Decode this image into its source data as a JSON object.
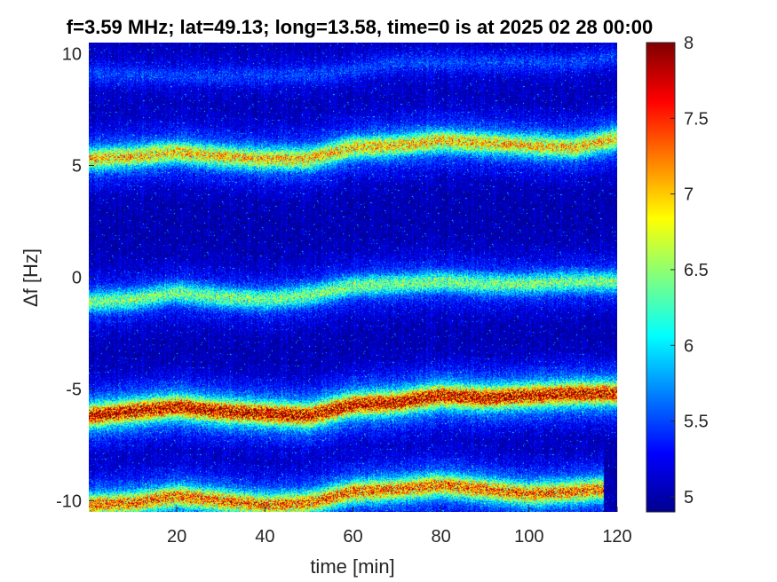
{
  "chart_data": {
    "type": "heatmap",
    "title": "f=3.59 MHz;  lat=49.13; long=13.58, time=0 is at 2025 02 28 00:00",
    "xlabel": "time [min]",
    "ylabel": "Δf [Hz]",
    "xlim": [
      0,
      120
    ],
    "ylim": [
      -10.5,
      10.5
    ],
    "xticks": [
      20,
      40,
      60,
      80,
      100,
      120
    ],
    "xtick_labels": [
      "20",
      "40",
      "60",
      "80",
      "100",
      "120"
    ],
    "yticks": [
      10,
      5,
      0,
      -5,
      -10
    ],
    "ytick_labels": [
      "10",
      "5",
      "0",
      "-5",
      "-10"
    ],
    "colorbar": {
      "colormap": "jet",
      "range": [
        4.9,
        8
      ],
      "ticks": [
        8,
        7.5,
        7,
        6.5,
        6,
        5.5,
        5
      ],
      "tick_labels": [
        "8",
        "7.5",
        "7",
        "6.5",
        "6",
        "5.5",
        "5"
      ]
    },
    "traces": [
      {
        "approx_center_hz": 9.3,
        "peak_value": 5.6,
        "points": [
          [
            0,
            9.1
          ],
          [
            20,
            9.0
          ],
          [
            40,
            9.0
          ],
          [
            55,
            9.1
          ],
          [
            70,
            9.6
          ],
          [
            90,
            9.6
          ],
          [
            110,
            9.6
          ],
          [
            120,
            9.9
          ]
        ]
      },
      {
        "approx_center_hz": 5.5,
        "peak_value": 7.0,
        "points": [
          [
            0,
            5.3
          ],
          [
            10,
            5.4
          ],
          [
            20,
            5.6
          ],
          [
            30,
            5.4
          ],
          [
            40,
            5.3
          ],
          [
            50,
            5.3
          ],
          [
            60,
            5.8
          ],
          [
            70,
            5.9
          ],
          [
            80,
            6.1
          ],
          [
            90,
            6.0
          ],
          [
            100,
            5.9
          ],
          [
            110,
            5.8
          ],
          [
            120,
            6.2
          ]
        ]
      },
      {
        "approx_center_hz": -0.8,
        "peak_value": 6.5,
        "points": [
          [
            0,
            -1.1
          ],
          [
            10,
            -1.0
          ],
          [
            20,
            -0.7
          ],
          [
            30,
            -0.9
          ],
          [
            40,
            -1.0
          ],
          [
            50,
            -0.8
          ],
          [
            60,
            -0.4
          ],
          [
            70,
            -0.3
          ],
          [
            80,
            -0.2
          ],
          [
            90,
            -0.3
          ],
          [
            100,
            -0.3
          ],
          [
            110,
            -0.2
          ],
          [
            120,
            -0.2
          ]
        ]
      },
      {
        "approx_center_hz": -6.0,
        "peak_value": 7.8,
        "points": [
          [
            0,
            -6.2
          ],
          [
            10,
            -6.0
          ],
          [
            20,
            -5.8
          ],
          [
            30,
            -6.0
          ],
          [
            40,
            -6.1
          ],
          [
            50,
            -6.2
          ],
          [
            60,
            -5.7
          ],
          [
            70,
            -5.6
          ],
          [
            80,
            -5.3
          ],
          [
            90,
            -5.4
          ],
          [
            100,
            -5.3
          ],
          [
            110,
            -5.2
          ],
          [
            120,
            -5.2
          ]
        ]
      },
      {
        "approx_center_hz": -9.9,
        "peak_value": 7.3,
        "points": [
          [
            0,
            -10.2
          ],
          [
            10,
            -10.1
          ],
          [
            20,
            -9.8
          ],
          [
            30,
            -10.0
          ],
          [
            40,
            -10.2
          ],
          [
            50,
            -10.1
          ],
          [
            60,
            -9.6
          ],
          [
            70,
            -9.5
          ],
          [
            80,
            -9.3
          ],
          [
            90,
            -9.5
          ],
          [
            100,
            -9.7
          ],
          [
            110,
            -9.6
          ],
          [
            115,
            -9.5
          ]
        ]
      }
    ]
  }
}
